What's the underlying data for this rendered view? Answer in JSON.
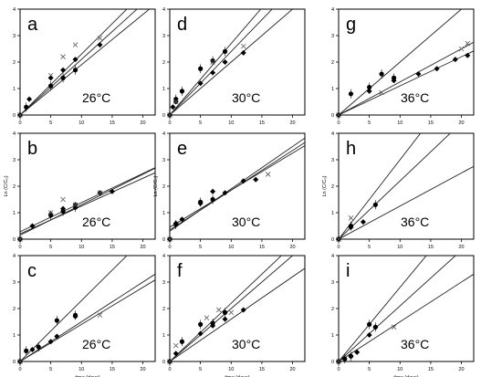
{
  "figure": {
    "shared_x_label": "time (days)",
    "y_label_text": "Ln (C/C₀)"
  },
  "chart_data": [
    {
      "panel": "a",
      "temperature": "26°C",
      "type": "scatter",
      "xlim": [
        0,
        22
      ],
      "ylim": [
        0,
        4
      ],
      "x_ticks": [
        0,
        5,
        10,
        15,
        20
      ],
      "y_ticks": [
        0,
        1,
        2,
        3,
        4
      ],
      "y_label": "",
      "series": [
        {
          "marker": "diamond",
          "points": [
            [
              0,
              0
            ],
            [
              1.5,
              0.6
            ],
            [
              5,
              1.4
            ],
            [
              7,
              1.7
            ],
            [
              9,
              2.1
            ],
            [
              13,
              2.65
            ]
          ],
          "fit_slope": 0.21
        },
        {
          "marker": "circle",
          "points": [
            [
              0,
              0
            ],
            [
              1,
              0.3
            ],
            [
              5,
              1.1
            ],
            [
              7,
              1.4
            ],
            [
              9,
              1.7
            ]
          ],
          "fit_slope": 0.19
        },
        {
          "marker": "x",
          "points": [
            [
              0,
              0
            ],
            [
              5,
              1.5
            ],
            [
              7,
              2.2
            ],
            [
              9,
              2.65
            ],
            [
              13,
              2.9
            ]
          ],
          "fit_slope": 0.23
        }
      ]
    },
    {
      "panel": "d",
      "temperature": "30°C",
      "type": "scatter",
      "xlim": [
        0,
        22
      ],
      "ylim": [
        0,
        4
      ],
      "x_ticks": [
        0,
        5,
        10,
        15,
        20
      ],
      "y_ticks": [
        0,
        1,
        2,
        3,
        4
      ],
      "y_label": "",
      "series": [
        {
          "marker": "diamond",
          "points": [
            [
              0,
              0
            ],
            [
              0.5,
              0.3
            ],
            [
              1,
              0.5
            ],
            [
              5,
              1.2
            ],
            [
              7,
              1.6
            ],
            [
              9,
              2.0
            ],
            [
              12,
              2.35
            ]
          ],
          "fit_slope": 0.2
        },
        {
          "marker": "circle",
          "points": [
            [
              0,
              0
            ],
            [
              1,
              0.6
            ],
            [
              2,
              0.9
            ],
            [
              5,
              1.75
            ],
            [
              7,
              2.05
            ],
            [
              9,
              2.4
            ]
          ],
          "fit_slope": 0.27
        },
        {
          "marker": "x",
          "points": [
            [
              0,
              0
            ],
            [
              1,
              0.5
            ],
            [
              7,
              2.0
            ],
            [
              12,
              2.6
            ]
          ],
          "fit_slope": 0.24
        }
      ]
    },
    {
      "panel": "g",
      "temperature": "36°C",
      "type": "scatter",
      "xlim": [
        0,
        22
      ],
      "ylim": [
        0,
        4
      ],
      "x_ticks": [
        0,
        5,
        10,
        15,
        20
      ],
      "y_ticks": [
        0,
        1,
        2,
        3,
        4
      ],
      "y_label": "",
      "series": [
        {
          "marker": "diamond",
          "points": [
            [
              0,
              0
            ],
            [
              5,
              0.9
            ],
            [
              9,
              1.3
            ],
            [
              13,
              1.55
            ],
            [
              16,
              1.75
            ],
            [
              19,
              2.1
            ],
            [
              21,
              2.25
            ]
          ],
          "fit_slope": 0.11
        },
        {
          "marker": "circle",
          "points": [
            [
              0,
              0
            ],
            [
              2,
              0.8
            ],
            [
              5,
              1.05
            ],
            [
              7,
              1.55
            ],
            [
              9,
              1.4
            ]
          ],
          "fit_slope": 0.2
        },
        {
          "marker": "x",
          "points": [
            [
              0,
              0
            ],
            [
              7,
              0.85
            ],
            [
              20,
              2.5
            ],
            [
              21,
              2.7
            ]
          ],
          "fit_slope": 0.125
        }
      ]
    },
    {
      "panel": "b",
      "temperature": "26°C",
      "type": "scatter",
      "xlim": [
        0,
        22
      ],
      "ylim": [
        0,
        4
      ],
      "x_ticks": [
        0,
        5,
        10,
        15,
        20
      ],
      "y_ticks": [
        0,
        1,
        2,
        3,
        4
      ],
      "y_label": "Ln (C/C₀)",
      "series": [
        {
          "marker": "diamond",
          "points": [
            [
              0,
              0
            ],
            [
              2,
              0.5
            ],
            [
              5,
              0.95
            ],
            [
              7,
              1.15
            ],
            [
              9,
              1.3
            ],
            [
              13,
              1.75
            ],
            [
              15,
              1.8
            ]
          ],
          "fit_intercept": 0.2,
          "fit_slope": 0.105
        },
        {
          "marker": "circle",
          "points": [
            [
              0,
              0
            ],
            [
              5,
              0.9
            ],
            [
              7,
              1.05
            ],
            [
              9,
              1.2
            ]
          ],
          "fit_intercept": 0.15,
          "fit_slope": 0.115
        },
        {
          "marker": "x",
          "points": [
            [
              0,
              0
            ],
            [
              5,
              1.0
            ],
            [
              7,
              1.5
            ],
            [
              9,
              1.3
            ],
            [
              13,
              1.75
            ]
          ],
          "fit_intercept": 0.28,
          "fit_slope": 0.11
        }
      ]
    },
    {
      "panel": "e",
      "temperature": "30°C",
      "type": "scatter",
      "xlim": [
        0,
        22
      ],
      "ylim": [
        0,
        4
      ],
      "x_ticks": [
        0,
        5,
        10,
        15,
        20
      ],
      "y_ticks": [
        0,
        1,
        2,
        3,
        4
      ],
      "y_label": "Ln (C/C₀)",
      "series": [
        {
          "marker": "diamond",
          "points": [
            [
              0,
              0
            ],
            [
              1,
              0.6
            ],
            [
              2,
              0.75
            ],
            [
              5,
              1.35
            ],
            [
              7,
              1.8
            ],
            [
              9,
              1.75
            ],
            [
              12,
              2.2
            ],
            [
              14,
              2.25
            ]
          ],
          "fit_intercept": 0.3,
          "fit_slope": 0.16
        },
        {
          "marker": "circle",
          "points": [
            [
              0,
              0
            ],
            [
              1,
              0.55
            ],
            [
              5,
              1.4
            ],
            [
              7,
              1.5
            ]
          ],
          "fit_intercept": 0.45,
          "fit_slope": 0.14
        },
        {
          "marker": "x",
          "points": [
            [
              0,
              0
            ],
            [
              16,
              2.45
            ]
          ],
          "fit_intercept": 0.35,
          "fit_slope": 0.15
        }
      ]
    },
    {
      "panel": "h",
      "temperature": "36°C",
      "type": "scatter",
      "xlim": [
        0,
        22
      ],
      "ylim": [
        0,
        4
      ],
      "x_ticks": [
        0,
        5,
        10,
        15,
        20
      ],
      "y_ticks": [
        0,
        1,
        2,
        3,
        4
      ],
      "y_label": "Ln (C/C₀)",
      "series": [
        {
          "marker": "diamond",
          "points": [
            [
              0,
              0
            ],
            [
              2,
              0.45
            ],
            [
              4,
              0.65
            ]
          ],
          "fit_slope": 0.125
        },
        {
          "marker": "circle",
          "points": [
            [
              0,
              0
            ],
            [
              2,
              0.5
            ],
            [
              6,
              1.3
            ]
          ],
          "fit_slope": 0.22
        },
        {
          "marker": "x",
          "points": [
            [
              0,
              0
            ],
            [
              2,
              0.8
            ]
          ],
          "fit_slope": 0.3
        }
      ]
    },
    {
      "panel": "c",
      "temperature": "26°C",
      "type": "scatter",
      "xlim": [
        0,
        22
      ],
      "ylim": [
        0,
        4
      ],
      "x_ticks": [
        0,
        5,
        10,
        15,
        20
      ],
      "y_ticks": [
        0,
        1,
        2,
        3,
        4
      ],
      "y_label": "",
      "series": [
        {
          "marker": "diamond",
          "points": [
            [
              0,
              0
            ],
            [
              2,
              0.45
            ],
            [
              5,
              0.75
            ],
            [
              6,
              0.95
            ],
            [
              9,
              1.7
            ]
          ],
          "fit_slope": 0.15
        },
        {
          "marker": "circle",
          "points": [
            [
              0,
              0
            ],
            [
              1,
              0.4
            ],
            [
              3,
              0.55
            ],
            [
              6,
              1.55
            ],
            [
              9,
              1.75
            ]
          ],
          "fit_slope": 0.23
        },
        {
          "marker": "x",
          "points": [
            [
              0,
              0
            ],
            [
              13,
              1.75
            ]
          ],
          "fit_slope": 0.14
        }
      ]
    },
    {
      "panel": "f",
      "temperature": "30°C",
      "type": "scatter",
      "xlim": [
        0,
        22
      ],
      "ylim": [
        0,
        4
      ],
      "x_ticks": [
        0,
        5,
        10,
        15,
        20
      ],
      "y_ticks": [
        0,
        1,
        2,
        3,
        4
      ],
      "y_label": "",
      "series": [
        {
          "marker": "diamond",
          "points": [
            [
              0,
              0
            ],
            [
              1,
              0.3
            ],
            [
              5,
              1.05
            ],
            [
              7,
              1.35
            ],
            [
              9,
              1.6
            ],
            [
              12,
              1.95
            ]
          ],
          "fit_slope": 0.16
        },
        {
          "marker": "circle",
          "points": [
            [
              0,
              0
            ],
            [
              2,
              0.75
            ],
            [
              5,
              1.4
            ],
            [
              7,
              1.45
            ],
            [
              9,
              1.85
            ]
          ],
          "fit_slope": 0.2
        },
        {
          "marker": "x",
          "points": [
            [
              0,
              0
            ],
            [
              1,
              0.6
            ],
            [
              6,
              1.65
            ],
            [
              8,
              1.95
            ],
            [
              10,
              1.85
            ]
          ],
          "fit_slope": 0.22
        }
      ]
    },
    {
      "panel": "i",
      "temperature": "36°C",
      "type": "scatter",
      "xlim": [
        0,
        22
      ],
      "ylim": [
        0,
        4
      ],
      "x_ticks": [
        0,
        5,
        10,
        15,
        20
      ],
      "y_ticks": [
        0,
        1,
        2,
        3,
        4
      ],
      "y_label": "",
      "series": [
        {
          "marker": "diamond",
          "points": [
            [
              0,
              0
            ],
            [
              2,
              0.2
            ],
            [
              3,
              0.35
            ],
            [
              5,
              1.0
            ],
            [
              6,
              1.3
            ]
          ],
          "fit_slope": 0.21
        },
        {
          "marker": "circle",
          "points": [
            [
              0,
              0
            ],
            [
              1,
              0.1
            ],
            [
              2,
              0.2
            ],
            [
              5,
              1.4
            ],
            [
              6,
              1.3
            ]
          ],
          "fit_slope": 0.28
        },
        {
          "marker": "x",
          "points": [
            [
              0,
              0
            ],
            [
              9,
              1.3
            ]
          ],
          "fit_slope": 0.15
        }
      ]
    }
  ]
}
